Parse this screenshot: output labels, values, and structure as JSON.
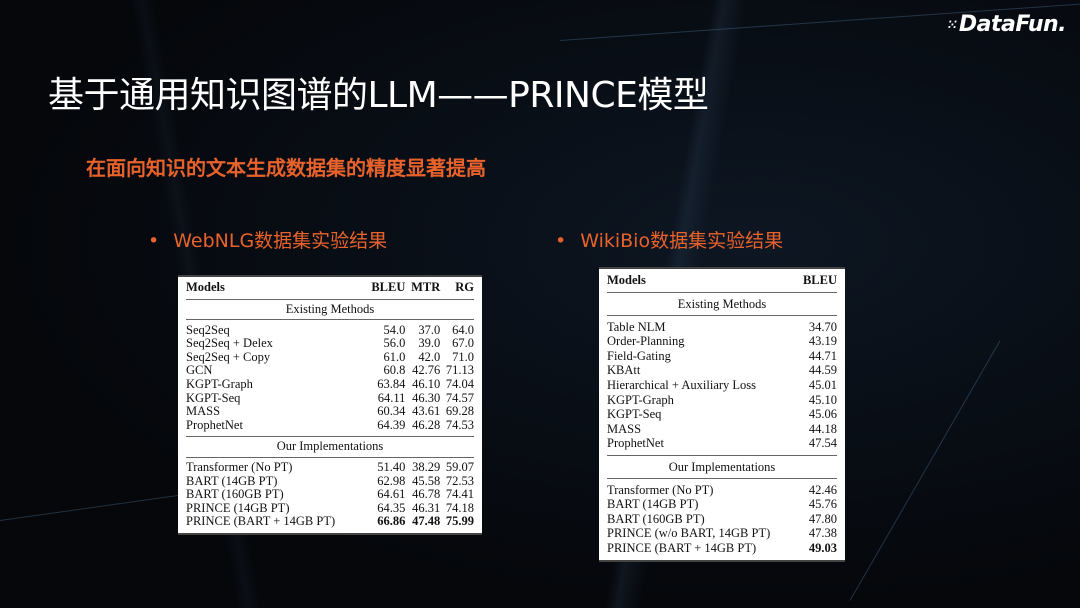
{
  "logo": "DataFun.",
  "title": "基于通用知识图谱的LLM——PRINCE模型",
  "subtitle": "在面向知识的文本生成数据集的精度显著提高",
  "bullets": [
    "WebNLG数据集实验结果",
    "WikiBio数据集实验结果"
  ],
  "colors": {
    "accent": "#e8622c",
    "background": "#05070b"
  },
  "webnlg": {
    "headers": [
      "Models",
      "BLEU",
      "MTR",
      "RG"
    ],
    "sections": [
      {
        "label": "Existing Methods",
        "rows": [
          [
            "Seq2Seq",
            "54.0",
            "37.0",
            "64.0"
          ],
          [
            "Seq2Seq + Delex",
            "56.0",
            "39.0",
            "67.0"
          ],
          [
            "Seq2Seq + Copy",
            "61.0",
            "42.0",
            "71.0"
          ],
          [
            "GCN",
            "60.8",
            "42.76",
            "71.13"
          ],
          [
            "KGPT-Graph",
            "63.84",
            "46.10",
            "74.04"
          ],
          [
            "KGPT-Seq",
            "64.11",
            "46.30",
            "74.57"
          ],
          [
            "MASS",
            "60.34",
            "43.61",
            "69.28"
          ],
          [
            "ProphetNet",
            "64.39",
            "46.28",
            "74.53"
          ]
        ]
      },
      {
        "label": "Our Implementations",
        "rows": [
          [
            "Transformer (No PT)",
            "51.40",
            "38.29",
            "59.07"
          ],
          [
            "BART (14GB PT)",
            "62.98",
            "45.58",
            "72.53"
          ],
          [
            "BART (160GB PT)",
            "64.61",
            "46.78",
            "74.41"
          ],
          [
            "PRINCE (14GB PT)",
            "64.35",
            "46.31",
            "74.18"
          ],
          [
            "PRINCE (BART + 14GB PT)",
            "66.86",
            "47.48",
            "75.99"
          ]
        ]
      }
    ]
  },
  "wikibio": {
    "headers": [
      "Models",
      "BLEU"
    ],
    "sections": [
      {
        "label": "Existing Methods",
        "rows": [
          [
            "Table NLM",
            "34.70"
          ],
          [
            "Order-Planning",
            "43.19"
          ],
          [
            "Field-Gating",
            "44.71"
          ],
          [
            "KBAtt",
            "44.59"
          ],
          [
            "Hierarchical + Auxiliary Loss",
            "45.01"
          ],
          [
            "KGPT-Graph",
            "45.10"
          ],
          [
            "KGPT-Seq",
            "45.06"
          ],
          [
            "MASS",
            "44.18"
          ],
          [
            "ProphetNet",
            "47.54"
          ]
        ]
      },
      {
        "label": "Our Implementations",
        "rows": [
          [
            "Transformer (No PT)",
            "42.46"
          ],
          [
            "BART (14GB PT)",
            "45.76"
          ],
          [
            "BART (160GB PT)",
            "47.80"
          ],
          [
            "PRINCE (w/o BART, 14GB PT)",
            "47.38"
          ],
          [
            "PRINCE (BART + 14GB PT)",
            "49.03"
          ]
        ]
      }
    ]
  }
}
